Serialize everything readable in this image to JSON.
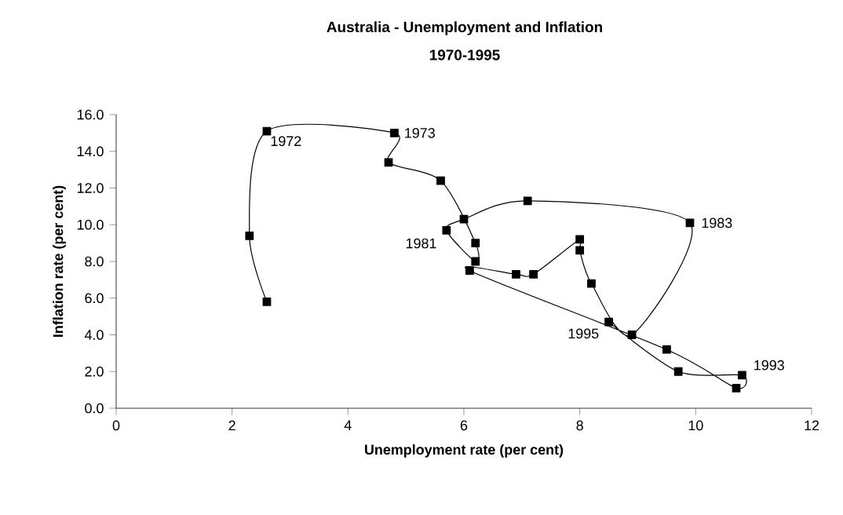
{
  "chart_data": {
    "type": "line",
    "title": "Australia - Unemployment and Inflation",
    "subtitle": "1970-1995",
    "xlabel": "Unemployment rate (per cent)",
    "ylabel": "Inflation rate (per cent)",
    "series": [
      {
        "color": "#000000",
        "x": [
          2.6,
          2.3,
          2.6,
          4.8,
          4.7,
          5.6,
          6.2,
          6.2,
          5.7,
          6.0,
          7.1,
          9.9,
          8.9,
          8.2,
          8.0,
          8.0,
          7.2,
          6.9,
          6.1,
          9.5,
          10.7,
          10.8,
          9.7,
          8.5
        ],
        "values": [
          5.8,
          9.4,
          15.1,
          15.0,
          13.4,
          12.4,
          9.0,
          8.0,
          9.7,
          10.3,
          11.3,
          10.1,
          4.0,
          6.8,
          8.6,
          9.2,
          7.3,
          7.3,
          7.5,
          3.2,
          1.1,
          1.8,
          2.0,
          4.7
        ]
      }
    ],
    "xlim": [
      0,
      12
    ],
    "xticks": [
      0,
      2,
      4,
      6,
      8,
      10,
      12
    ],
    "ylim": [
      0,
      16
    ],
    "yticks": [
      {
        "value": 0,
        "label": "0.0"
      },
      {
        "value": 2,
        "label": "2.0"
      },
      {
        "value": 4,
        "label": "4.0"
      },
      {
        "value": 6,
        "label": "6.0"
      },
      {
        "value": 8,
        "label": "8.0"
      },
      {
        "value": 10,
        "label": "10.0"
      },
      {
        "value": 12,
        "label": "12.0"
      },
      {
        "value": 14,
        "label": "14.0"
      },
      {
        "value": 16,
        "label": "16.0"
      }
    ],
    "annotations": [
      {
        "text": "1972",
        "x": 2.6,
        "y": 15.1
      },
      {
        "text": "1973",
        "x": 4.8,
        "y": 15.0
      },
      {
        "text": "1981",
        "x": 5.7,
        "y": 9.7
      },
      {
        "text": "1983",
        "x": 9.9,
        "y": 10.1
      },
      {
        "text": "1995",
        "x": 8.5,
        "y": 4.7
      },
      {
        "text": "1993",
        "x": 10.8,
        "y": 1.8
      }
    ],
    "grid": false,
    "marker": "square",
    "line_style": "solid"
  }
}
